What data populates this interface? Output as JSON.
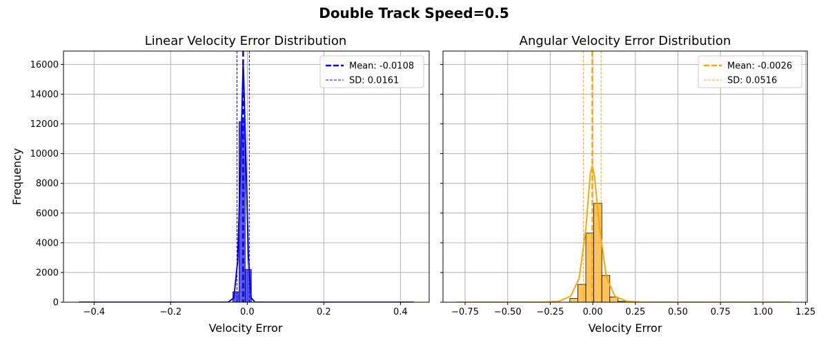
{
  "figure_title": "Double Track Speed=0.5",
  "chart_data": [
    {
      "type": "bar",
      "title": "Linear Velocity Error Distribution",
      "xlabel": "Velocity Error",
      "ylabel": "Frequency",
      "xlim": [
        -0.48,
        0.475
      ],
      "ylim": [
        0,
        16900
      ],
      "xticks": [
        -0.4,
        -0.2,
        0.0,
        0.2,
        0.4
      ],
      "xtick_labels": [
        "−0.4",
        "−0.2",
        "0.0",
        "0.2",
        "0.4"
      ],
      "yticks": [
        0,
        2000,
        4000,
        6000,
        8000,
        10000,
        12000,
        14000,
        16000
      ],
      "ytick_labels": [
        "0",
        "2000",
        "4000",
        "6000",
        "8000",
        "10000",
        "12000",
        "14000",
        "16000"
      ],
      "grid": true,
      "color": "#0000ff",
      "bars": [
        {
          "x0": -0.0375,
          "x1": -0.0215,
          "value": 700
        },
        {
          "x0": -0.0215,
          "x1": -0.0055,
          "value": 12150
        },
        {
          "x0": -0.0055,
          "x1": 0.0105,
          "value": 2200
        }
      ],
      "kde": [
        [
          -0.44,
          0
        ],
        [
          -0.05,
          0
        ],
        [
          -0.035,
          300
        ],
        [
          -0.025,
          2800
        ],
        [
          -0.018,
          9000
        ],
        [
          -0.012,
          14800
        ],
        [
          -0.0108,
          16100
        ],
        [
          -0.009,
          14800
        ],
        [
          -0.003,
          9000
        ],
        [
          0.003,
          3000
        ],
        [
          0.01,
          300
        ],
        [
          0.02,
          0
        ],
        [
          0.435,
          0
        ]
      ],
      "legend_location": "upper right",
      "mean": -0.0108,
      "sd": 0.0161,
      "legend": [
        "Mean: -0.0108",
        "SD: 0.0161"
      ]
    },
    {
      "type": "bar",
      "title": "Angular Velocity Error Distribution",
      "xlabel": "Velocity Error",
      "ylabel": "",
      "xlim": [
        -0.88,
        1.26
      ],
      "ylim": [
        0,
        16900
      ],
      "xticks": [
        -0.75,
        -0.5,
        -0.25,
        0.0,
        0.25,
        0.5,
        0.75,
        1.0,
        1.25
      ],
      "xtick_labels": [
        "−0.75",
        "−0.50",
        "−0.25",
        "0.00",
        "0.25",
        "0.50",
        "0.75",
        "1.00",
        "1.25"
      ],
      "yticks": [
        0,
        2000,
        4000,
        6000,
        8000,
        10000,
        12000,
        14000,
        16000
      ],
      "grid": true,
      "color": "#ffa500",
      "bars": [
        {
          "x0": -0.135,
          "x1": -0.088,
          "value": 250
        },
        {
          "x0": -0.088,
          "x1": -0.041,
          "value": 1200
        },
        {
          "x0": -0.041,
          "x1": 0.006,
          "value": 4650
        },
        {
          "x0": 0.006,
          "x1": 0.053,
          "value": 6650
        },
        {
          "x0": 0.053,
          "x1": 0.1,
          "value": 1800
        },
        {
          "x0": 0.1,
          "x1": 0.147,
          "value": 350
        },
        {
          "x0": 0.147,
          "x1": 0.194,
          "value": 60
        }
      ],
      "kde": [
        [
          -0.8,
          0
        ],
        [
          -0.3,
          0
        ],
        [
          -0.2,
          60
        ],
        [
          -0.13,
          400
        ],
        [
          -0.08,
          1600
        ],
        [
          -0.04,
          5000
        ],
        [
          -0.015,
          8600
        ],
        [
          -0.003,
          9200
        ],
        [
          0.01,
          8500
        ],
        [
          0.04,
          5000
        ],
        [
          0.08,
          1700
        ],
        [
          0.13,
          400
        ],
        [
          0.2,
          60
        ],
        [
          0.3,
          0
        ],
        [
          1.16,
          0
        ]
      ],
      "legend_location": "upper right",
      "mean": -0.0026,
      "sd": 0.0516,
      "legend": [
        "Mean: -0.0026",
        "SD: 0.0516"
      ]
    }
  ]
}
